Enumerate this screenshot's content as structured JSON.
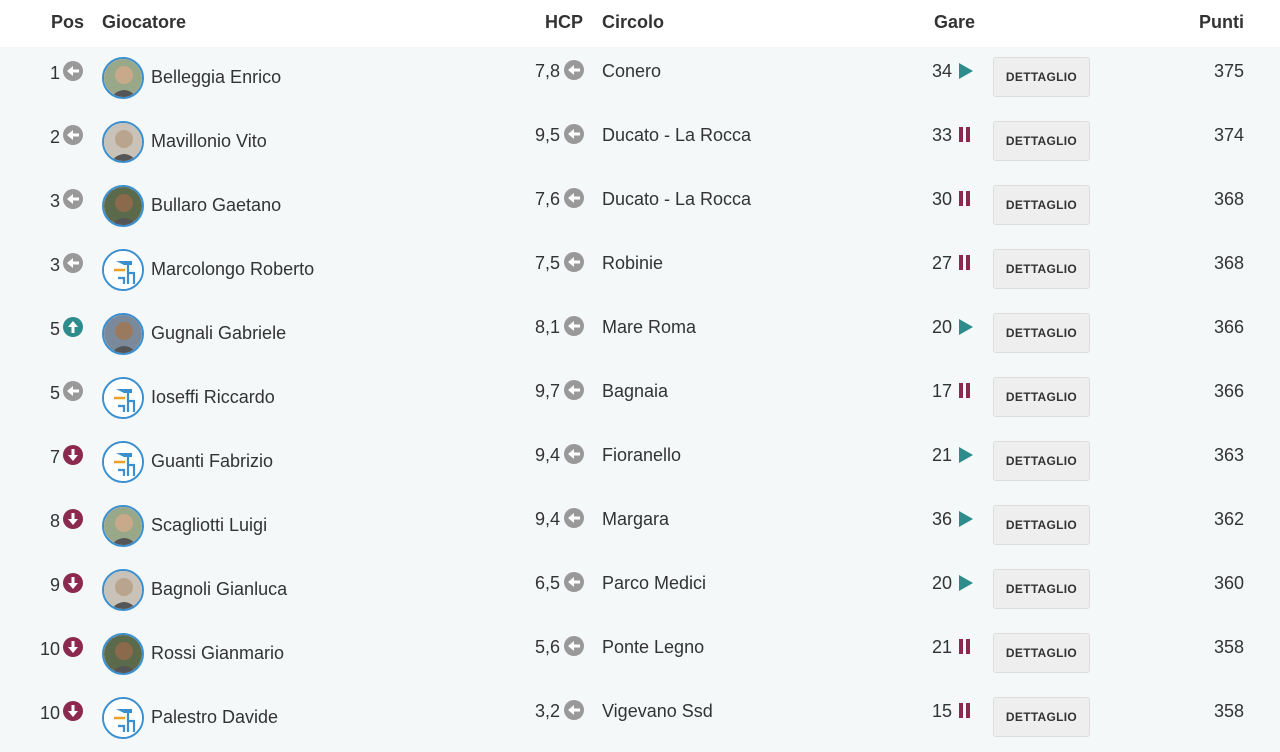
{
  "header": {
    "pos": "Pos",
    "player": "Giocatore",
    "hcp": "HCP",
    "club": "Circolo",
    "gare": "Gare",
    "punti": "Punti"
  },
  "colors": {
    "same": "#999999",
    "up": "#2e8c8c",
    "down": "#8b2a4e",
    "play": "#2e8c8c",
    "pause": "#8b2a4e"
  },
  "rows": [
    {
      "pos": "1",
      "trend": "same",
      "avatar": "photo",
      "name": "Belleggia Enrico",
      "hcp": "7,8",
      "club": "Conero",
      "gare": "34",
      "gare_status": "play",
      "button": "DETTAGLIO",
      "punti": "375"
    },
    {
      "pos": "2",
      "trend": "same",
      "avatar": "photo",
      "name": "Mavillonio Vito",
      "hcp": "9,5",
      "club": "Ducato - La Rocca",
      "gare": "33",
      "gare_status": "pause",
      "button": "DETTAGLIO",
      "punti": "374"
    },
    {
      "pos": "3",
      "trend": "same",
      "avatar": "photo",
      "name": "Bullaro Gaetano",
      "hcp": "7,6",
      "club": "Ducato - La Rocca",
      "gare": "30",
      "gare_status": "pause",
      "button": "DETTAGLIO",
      "punti": "368"
    },
    {
      "pos": "3",
      "trend": "same",
      "avatar": "logo",
      "name": "Marcolongo Roberto",
      "hcp": "7,5",
      "club": "Robinie",
      "gare": "27",
      "gare_status": "pause",
      "button": "DETTAGLIO",
      "punti": "368"
    },
    {
      "pos": "5",
      "trend": "up",
      "avatar": "photo",
      "name": "Gugnali Gabriele",
      "hcp": "8,1",
      "club": "Mare Roma",
      "gare": "20",
      "gare_status": "play",
      "button": "DETTAGLIO",
      "punti": "366"
    },
    {
      "pos": "5",
      "trend": "same",
      "avatar": "logo",
      "name": "Ioseffi Riccardo",
      "hcp": "9,7",
      "club": "Bagnaia",
      "gare": "17",
      "gare_status": "pause",
      "button": "DETTAGLIO",
      "punti": "366"
    },
    {
      "pos": "7",
      "trend": "down",
      "avatar": "logo",
      "name": "Guanti Fabrizio",
      "hcp": "9,4",
      "club": "Fioranello",
      "gare": "21",
      "gare_status": "play",
      "button": "DETTAGLIO",
      "punti": "363"
    },
    {
      "pos": "8",
      "trend": "down",
      "avatar": "photo",
      "name": "Scagliotti Luigi",
      "hcp": "9,4",
      "club": "Margara",
      "gare": "36",
      "gare_status": "play",
      "button": "DETTAGLIO",
      "punti": "362"
    },
    {
      "pos": "9",
      "trend": "down",
      "avatar": "photo",
      "name": "Bagnoli Gianluca",
      "hcp": "6,5",
      "club": "Parco Medici",
      "gare": "20",
      "gare_status": "play",
      "button": "DETTAGLIO",
      "punti": "360"
    },
    {
      "pos": "10",
      "trend": "down",
      "avatar": "photo",
      "name": "Rossi Gianmario",
      "hcp": "5,6",
      "club": "Ponte Legno",
      "gare": "21",
      "gare_status": "pause",
      "button": "DETTAGLIO",
      "punti": "358"
    },
    {
      "pos": "10",
      "trend": "down",
      "avatar": "logo",
      "name": "Palestro Davide",
      "hcp": "3,2",
      "club": "Vigevano Ssd",
      "gare": "15",
      "gare_status": "pause",
      "button": "DETTAGLIO",
      "punti": "358"
    }
  ]
}
